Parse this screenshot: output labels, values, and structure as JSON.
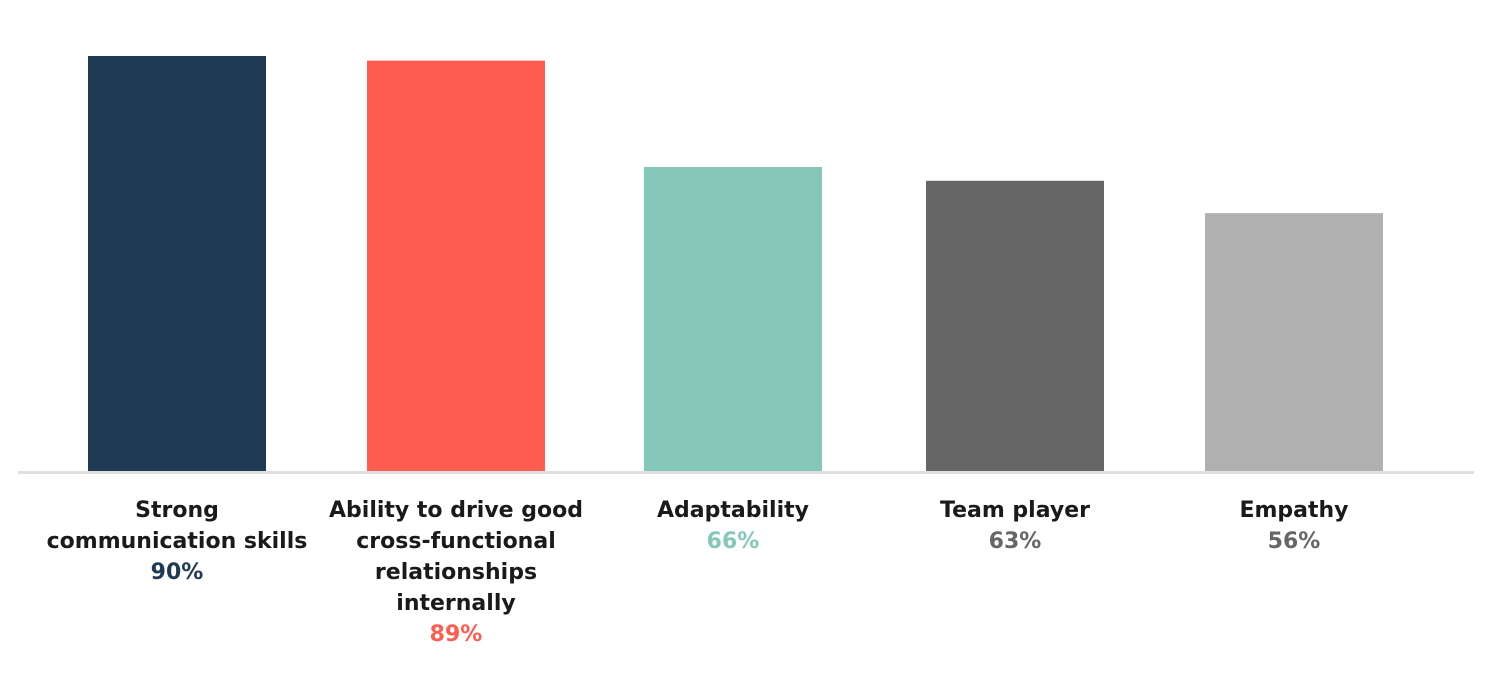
{
  "chart_data": {
    "type": "bar",
    "categories": [
      [
        "Strong",
        "communication skills"
      ],
      [
        "Ability to drive good",
        "cross-functional",
        "relationships",
        "internally"
      ],
      [
        "Adaptability"
      ],
      [
        "Team player"
      ],
      [
        "Empathy"
      ]
    ],
    "values": [
      90,
      89,
      66,
      63,
      56
    ],
    "value_labels": [
      "90%",
      "89%",
      "66%",
      "63%",
      "56%"
    ],
    "colors": [
      "#1f3a52",
      "#ff5d4f",
      "#85c8ba",
      "#666666",
      "#b0b0b0"
    ],
    "value_label_colors": [
      "#1f3a52",
      "#ff5d4f",
      "#85c8ba",
      "#666666",
      "#666666"
    ],
    "title": "",
    "xlabel": "",
    "ylabel": "",
    "ylim": [
      0,
      90
    ],
    "grid": false,
    "baseline_color": "#e0e0e0"
  }
}
